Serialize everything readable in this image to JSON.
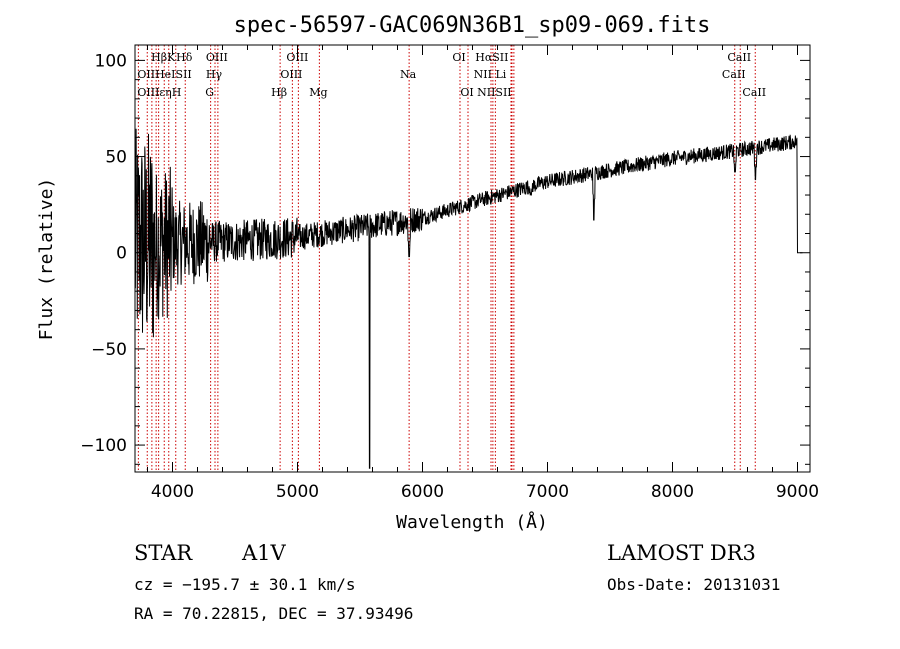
{
  "chart_data": {
    "type": "line",
    "title": "spec-56597-GAC069N36B1_sp09-069.fits",
    "xlabel": "Wavelength (Å)",
    "ylabel": "Flux (relative)",
    "xlim": [
      3700,
      9100
    ],
    "ylim": [
      -114,
      108
    ],
    "xticks": [
      4000,
      5000,
      6000,
      7000,
      8000,
      9000
    ],
    "xtick_labels": [
      "4000",
      "5000",
      "6000",
      "7000",
      "8000",
      "9000"
    ],
    "yticks": [
      -100,
      -50,
      0,
      50,
      100
    ],
    "ytick_labels": [
      "−100",
      "−50",
      "0",
      "50",
      "100"
    ],
    "continuum": [
      {
        "x": 3700,
        "y": 5
      },
      {
        "x": 4000,
        "y": 5
      },
      {
        "x": 4500,
        "y": 6
      },
      {
        "x": 5000,
        "y": 8
      },
      {
        "x": 5500,
        "y": 13
      },
      {
        "x": 6000,
        "y": 18
      },
      {
        "x": 6500,
        "y": 28
      },
      {
        "x": 7000,
        "y": 37
      },
      {
        "x": 7500,
        "y": 43
      },
      {
        "x": 8000,
        "y": 49
      },
      {
        "x": 8500,
        "y": 53
      },
      {
        "x": 9000,
        "y": 58
      }
    ],
    "absorption_features": [
      {
        "x": 5577,
        "y": -112
      },
      {
        "x": 5893,
        "y": -2
      },
      {
        "x": 7370,
        "y": 17
      },
      {
        "x": 6870,
        "y": 30
      },
      {
        "x": 8500,
        "y": 42
      },
      {
        "x": 8663,
        "y": 38
      }
    ],
    "series_end": {
      "x": 9000,
      "y": 0
    },
    "spectral_lines": [
      {
        "label": "HβK",
        "wavelength": 3934,
        "row": 0
      },
      {
        "label": "Hδ",
        "wavelength": 4102,
        "row": 0
      },
      {
        "label": "OIII",
        "wavelength": 4363,
        "row": 0
      },
      {
        "label": "OIII",
        "wavelength": 5007,
        "row": 0
      },
      {
        "label": "OI",
        "wavelength": 6300,
        "row": 0
      },
      {
        "label": "HαSII",
        "wavelength": 6563,
        "row": 0
      },
      {
        "label": "CaII",
        "wavelength": 8542,
        "row": 0
      },
      {
        "label": "OIIHeISII",
        "wavelength": 3727,
        "row": 1
      },
      {
        "label": "Hγ",
        "wavelength": 4340,
        "row": 1
      },
      {
        "label": "OIII",
        "wavelength": 4959,
        "row": 1
      },
      {
        "label": "Na",
        "wavelength": 5893,
        "row": 1
      },
      {
        "label": "NII Li",
        "wavelength": 6548,
        "row": 1
      },
      {
        "label": "CaII",
        "wavelength": 8498,
        "row": 1
      },
      {
        "label": "OIIIεηH",
        "wavelength": 3727,
        "row": 2
      },
      {
        "label": "G",
        "wavelength": 4305,
        "row": 2
      },
      {
        "label": "Hβ",
        "wavelength": 4861,
        "row": 2
      },
      {
        "label": "Mg",
        "wavelength": 5175,
        "row": 2
      },
      {
        "label": "OI",
        "wavelength": 6364,
        "row": 2
      },
      {
        "label": "NIISII",
        "wavelength": 6583,
        "row": 2
      },
      {
        "label": "CaII",
        "wavelength": 8662,
        "row": 2
      }
    ],
    "line_markers": [
      3727,
      3798,
      3835,
      3869,
      3889,
      3934,
      3970,
      4026,
      4102,
      4305,
      4340,
      4363,
      4861,
      4959,
      5007,
      5175,
      5893,
      6300,
      6364,
      6548,
      6563,
      6583,
      6708,
      6716,
      6731,
      8498,
      8542,
      8662
    ]
  },
  "info": {
    "object_class": "STAR",
    "subclass": "A1V",
    "survey": "LAMOST DR3",
    "cz": "cz = −195.7 ± 30.1 km/s",
    "obs_date": "Obs-Date: 20131031",
    "coords": "RA =  70.22815, DEC =  37.93496"
  },
  "colors": {
    "axis": "#000000",
    "spectrum": "#000000",
    "marker": "#cc0000",
    "background": "#ffffff"
  }
}
